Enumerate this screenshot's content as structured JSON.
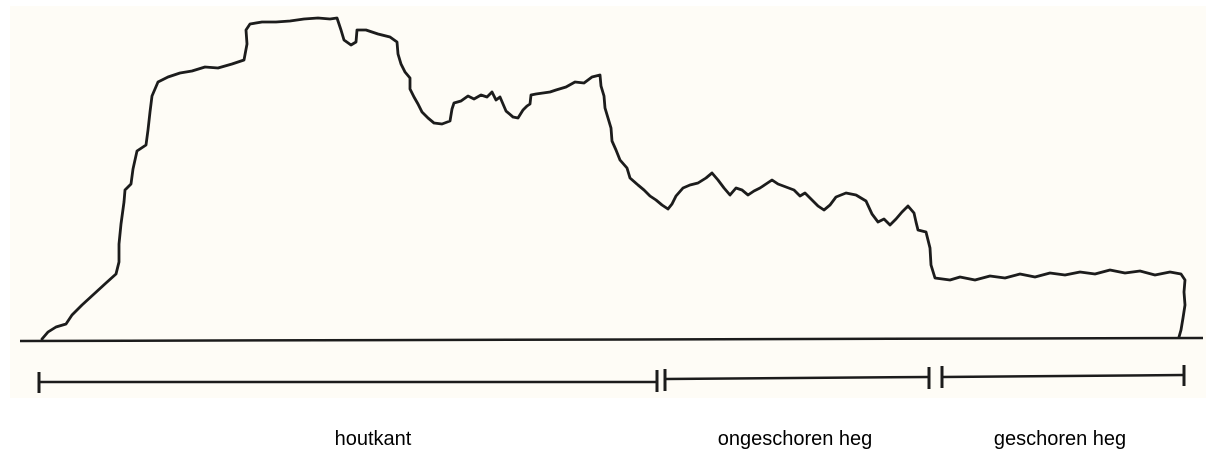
{
  "sections": [
    {
      "label": "houtkant"
    },
    {
      "label": "ongeschoren heg"
    },
    {
      "label": "geschoren heg"
    }
  ],
  "colors": {
    "line": "#1c1c1c",
    "background": "#fefcf6"
  }
}
